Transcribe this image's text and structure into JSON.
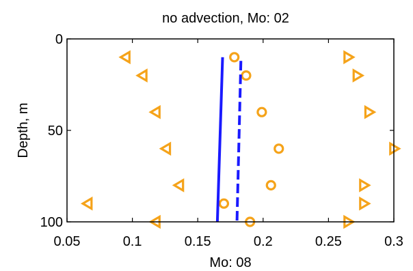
{
  "chart_data": {
    "type": "scatter",
    "title": "no advection,  Mo: 02",
    "xlabel": "Mo: 08",
    "ylabel": "Depth, m",
    "xlim": [
      0.05,
      0.3
    ],
    "ylim": [
      0,
      100
    ],
    "y_reversed": true,
    "grid": false,
    "x_ticks": [
      "0.05",
      "0.1",
      "0.15",
      "0.2",
      "0.25",
      "0.3"
    ],
    "y_ticks": [
      "0",
      "50",
      "100"
    ],
    "colors": {
      "markers": "#f5a31a",
      "lines": "#1a1aff",
      "frame": "#000000"
    },
    "series": [
      {
        "marker": "triangle-left",
        "points": [
          [
            0.095,
            10
          ],
          [
            0.108,
            20
          ],
          [
            0.118,
            40
          ],
          [
            0.126,
            60
          ],
          [
            0.136,
            80
          ],
          [
            0.066,
            90
          ],
          [
            0.118,
            100
          ]
        ]
      },
      {
        "marker": "circle",
        "points": [
          [
            0.178,
            10
          ],
          [
            0.187,
            20
          ],
          [
            0.199,
            40
          ],
          [
            0.212,
            60
          ],
          [
            0.206,
            80
          ],
          [
            0.17,
            90
          ],
          [
            0.19,
            100
          ]
        ]
      },
      {
        "marker": "triangle-right",
        "points": [
          [
            0.265,
            10
          ],
          [
            0.272,
            20
          ],
          [
            0.281,
            40
          ],
          [
            0.3,
            60
          ],
          [
            0.277,
            80
          ],
          [
            0.277,
            90
          ],
          [
            0.265,
            100
          ]
        ]
      },
      {
        "style": "solid-line",
        "points": [
          [
            0.169,
            10
          ],
          [
            0.165,
            100
          ]
        ]
      },
      {
        "style": "dashed-line",
        "points": [
          [
            0.183,
            12
          ],
          [
            0.18,
            100
          ]
        ]
      }
    ]
  }
}
